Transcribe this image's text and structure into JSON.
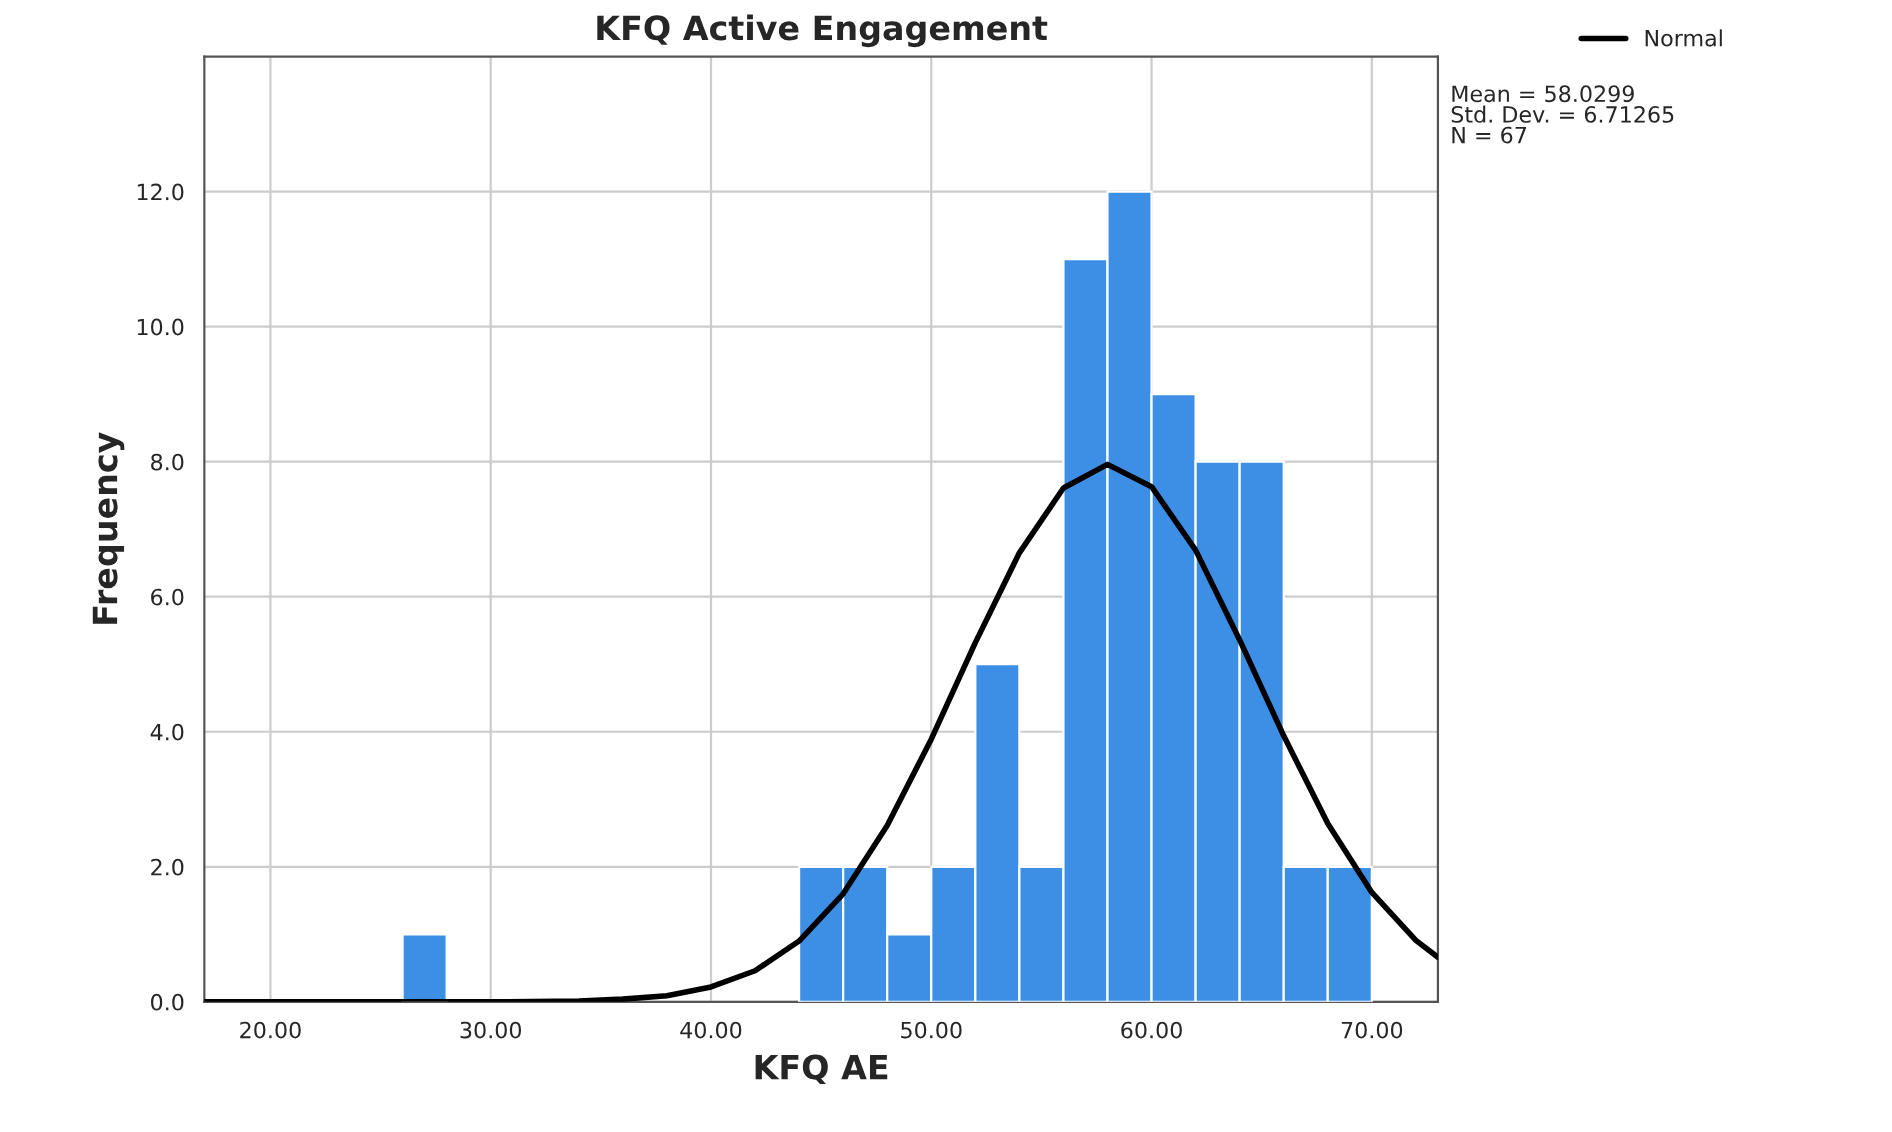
{
  "chart_data": {
    "type": "histogram",
    "title": "KFQ Active Engagement",
    "xlabel": "KFQ AE",
    "ylabel": "Frequency",
    "bins": [
      26,
      28,
      30,
      32,
      34,
      36,
      38,
      40,
      42,
      44,
      46,
      48,
      50,
      52,
      54,
      56,
      58,
      60,
      62,
      64,
      66,
      68,
      70
    ],
    "series": [
      {
        "color": "#3d8fe6",
        "values": [
          1,
          0,
          0,
          0,
          0,
          0,
          0,
          0,
          0,
          2,
          2,
          1,
          2,
          5,
          2,
          11,
          12,
          9,
          8,
          8,
          2,
          2
        ]
      },
      {
        "type": "line",
        "name": "Normal",
        "color": "#000000",
        "x": [
          17,
          25,
          30,
          34,
          36,
          38,
          40,
          42,
          44,
          46,
          48,
          50,
          52,
          54,
          56,
          58,
          60,
          62,
          64,
          66,
          68,
          70,
          72,
          73
        ],
        "values": [
          0,
          0,
          0,
          0.01,
          0.04,
          0.09,
          0.22,
          0.46,
          0.9,
          1.6,
          2.61,
          3.89,
          5.32,
          6.65,
          7.61,
          7.96,
          7.63,
          6.69,
          5.36,
          3.94,
          2.64,
          1.62,
          0.91,
          0.66
        ]
      }
    ],
    "xlim": [
      17,
      73
    ],
    "ylim": [
      0,
      14
    ],
    "xticks": [
      {
        "value": 20,
        "label": "20.00"
      },
      {
        "value": 30,
        "label": "30.00"
      },
      {
        "value": 40,
        "label": "40.00"
      },
      {
        "value": 50,
        "label": "50.00"
      },
      {
        "value": 60,
        "label": "60.00"
      },
      {
        "value": 70,
        "label": "70.00"
      }
    ],
    "yticks": [
      {
        "value": 0,
        "label": "0.0"
      },
      {
        "value": 2,
        "label": "2.0"
      },
      {
        "value": 4,
        "label": "4.0"
      },
      {
        "value": 6,
        "label": "6.0"
      },
      {
        "value": 8,
        "label": "8.0"
      },
      {
        "value": 10,
        "label": "10.0"
      },
      {
        "value": 12,
        "label": "12.0"
      }
    ],
    "grid": true,
    "legend": "top right",
    "annotations": [
      "Mean = 58.0299\nStd. Dev. = 6.71265\nN = 67"
    ]
  }
}
